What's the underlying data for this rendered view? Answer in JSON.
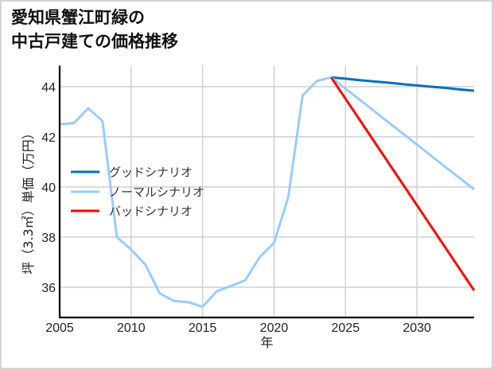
{
  "title": {
    "line1": "愛知県蟹江町緑の",
    "line2": "中古戸建ての価格推移"
  },
  "chart_data": {
    "type": "line",
    "title": "愛知県蟹江町緑の中古戸建ての価格推移",
    "xlabel": "年",
    "ylabel": "坪（3.3㎡）単価（万円）",
    "xlim": [
      2005,
      2034
    ],
    "ylim": [
      34.79,
      44.84
    ],
    "xticks": [
      2005,
      2010,
      2015,
      2020,
      2025,
      2030
    ],
    "yticks": [
      36,
      38,
      40,
      42,
      44
    ],
    "grid": true,
    "grid_color": "#d3d3d3",
    "legend_position": "center-left",
    "series": [
      {
        "name": "グッドシナリオ",
        "color": "#0070C0",
        "x": [
          2024,
          2025,
          2026,
          2027,
          2028,
          2029,
          2030,
          2031,
          2032,
          2033,
          2034
        ],
        "values": [
          44.37,
          44.32,
          44.26,
          44.21,
          44.16,
          44.1,
          44.05,
          44.0,
          43.95,
          43.89,
          43.84
        ]
      },
      {
        "name": "ノーマルシナリオ",
        "color": "#99CCFF",
        "x": [
          2005,
          2006,
          2007,
          2008,
          2009,
          2010,
          2011,
          2012,
          2013,
          2014,
          2015,
          2016,
          2017,
          2018,
          2019,
          2020,
          2021,
          2022,
          2023,
          2024,
          2025,
          2026,
          2027,
          2028,
          2029,
          2030,
          2031,
          2032,
          2033,
          2034
        ],
        "values": [
          42.5,
          42.55,
          43.14,
          42.63,
          38.0,
          37.5,
          36.9,
          35.75,
          35.45,
          35.4,
          35.22,
          35.84,
          36.05,
          36.28,
          37.2,
          37.77,
          39.6,
          43.65,
          44.23,
          44.37,
          43.92,
          43.48,
          43.03,
          42.58,
          42.14,
          41.69,
          41.24,
          40.79,
          40.35,
          39.9
        ]
      },
      {
        "name": "バッドシナリオ",
        "color": "#FF0000",
        "x": [
          2024,
          2025,
          2026,
          2027,
          2028,
          2029,
          2030,
          2031,
          2032,
          2033,
          2034
        ],
        "values": [
          44.37,
          43.52,
          42.67,
          41.82,
          40.97,
          40.12,
          39.27,
          38.42,
          37.57,
          36.72,
          35.87
        ]
      }
    ]
  }
}
